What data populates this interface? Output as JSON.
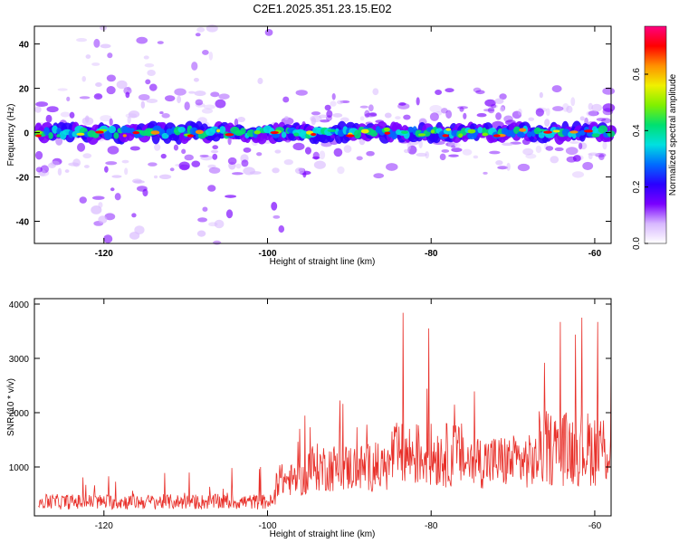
{
  "title": "C2E1.2025.351.23.15.E02",
  "chart_data": [
    {
      "type": "heatmap",
      "panel": "top",
      "xlabel": "Height of straight line (km)",
      "ylabel": "Frequency (Hz)",
      "xlim": [
        -128.5,
        -58
      ],
      "ylim": [
        -50,
        48
      ],
      "xticks": [
        -120,
        -100,
        -80,
        -60
      ],
      "yticks": [
        -40,
        -20,
        0,
        20,
        40
      ],
      "ridge": {
        "frequency_hz": 0,
        "start_km": -128,
        "end_km": -58
      },
      "colorbar": {
        "label": "Normalized spectral amplitude",
        "range": [
          0.0,
          0.77
        ],
        "ticks": [
          0.0,
          0.2,
          0.4,
          0.6
        ],
        "colors": [
          "#ffffff",
          "#d8b8ff",
          "#7a00ff",
          "#2a00ff",
          "#006cff",
          "#00e0e0",
          "#00e070",
          "#80f000",
          "#f0f000",
          "#ff9000",
          "#ff0000",
          "#ff0080"
        ]
      }
    },
    {
      "type": "line",
      "panel": "bottom",
      "xlabel": "Height of straight line (km)",
      "ylabel": "SNR (10 * v/v)",
      "xlim": [
        -128.5,
        -58
      ],
      "ylim": [
        100,
        4100
      ],
      "xticks": [
        -120,
        -100,
        -80,
        -60
      ],
      "yticks": [
        1000,
        2000,
        3000,
        4000
      ],
      "color": "#e8302a",
      "segments": [
        {
          "x_start": -128,
          "x_end": -99,
          "baseline": 330,
          "spread": 280,
          "max": 1000
        },
        {
          "x_start": -99,
          "x_end": -95,
          "baseline": 700,
          "spread": 600,
          "max": 2150
        },
        {
          "x_start": -95,
          "x_end": -85,
          "baseline": 900,
          "spread": 900,
          "max": 2300
        },
        {
          "x_start": -85,
          "x_end": -76,
          "baseline": 1100,
          "spread": 1200,
          "max": 4050
        },
        {
          "x_start": -76,
          "x_end": -67,
          "baseline": 1000,
          "spread": 1000,
          "max": 2600
        },
        {
          "x_start": -67,
          "x_end": -58,
          "baseline": 1200,
          "spread": 1400,
          "max": 3850
        }
      ]
    }
  ]
}
